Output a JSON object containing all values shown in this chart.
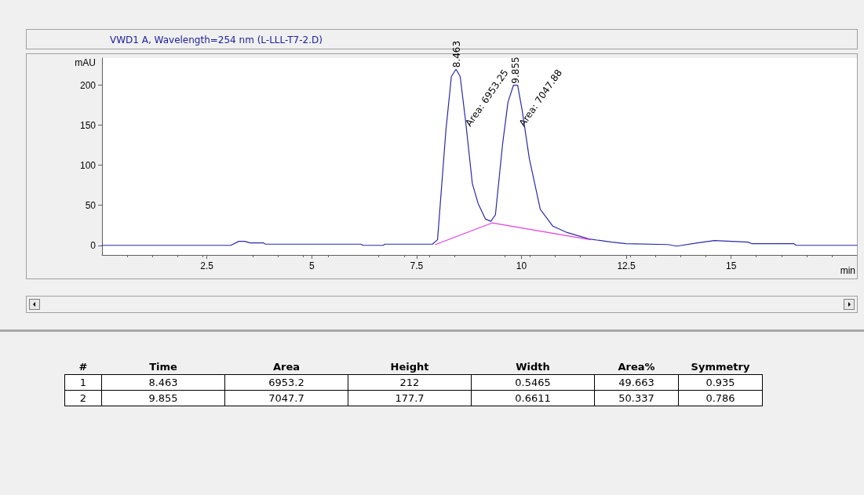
{
  "chart_data": [
    {
      "type": "line",
      "title": "VWD1 A, Wavelength=254 nm (L-LLL-T7-2.D)",
      "xlabel": "min",
      "ylabel": "mAU",
      "xlim": [
        0,
        18
      ],
      "xticks": [
        2.5,
        5,
        7.5,
        10,
        12.5,
        15
      ],
      "ylim": [
        -12,
        234
      ],
      "yticks": [
        0,
        50,
        100,
        150,
        200
      ],
      "grid": false,
      "series": [
        {
          "color": "#2a2aa8",
          "x": [
            0,
            3.07,
            3.26,
            3.4,
            3.53,
            3.85,
            3.9,
            6.17,
            6.23,
            6.7,
            6.75,
            7.88,
            8.0,
            8.2,
            8.33,
            8.44,
            8.54,
            8.67,
            8.83,
            8.97,
            9.14,
            9.27,
            9.38,
            9.55,
            9.68,
            9.81,
            9.91,
            10.02,
            10.19,
            10.45,
            10.75,
            11.09,
            11.61,
            12.15,
            12.5,
            13.5,
            13.7,
            14.2,
            14.6,
            15.4,
            15.5,
            16.5,
            16.55,
            18
          ],
          "values": [
            0,
            0,
            5,
            5,
            3,
            3,
            1.5,
            1.5,
            0,
            0,
            1.5,
            1.5,
            7,
            144,
            211,
            220,
            211,
            155,
            77,
            52,
            33,
            30,
            38,
            126,
            179,
            200,
            200,
            168,
            108,
            45,
            24,
            16,
            8,
            4,
            2,
            1,
            -1,
            3,
            6,
            4,
            2,
            2,
            0,
            0
          ]
        },
        {
          "color": "#e040e0",
          "x": [
            7.95,
            9.3,
            11.65
          ],
          "values": [
            1,
            28,
            7
          ]
        }
      ],
      "annotations": [
        {
          "text": "8.463",
          "x": 8.463,
          "y": 222
        },
        {
          "text": "Area: 6953.25",
          "x": 8.72,
          "y": 150
        },
        {
          "text": "9.855",
          "x": 9.855,
          "y": 202
        },
        {
          "text": "Area: 7047.88",
          "x": 10.0,
          "y": 150
        }
      ]
    },
    {
      "type": "other",
      "categories": [
        "#",
        "Time",
        "Area",
        "Height",
        "Width",
        "Area%",
        "Symmetry"
      ],
      "cell_labels": [
        [
          "1",
          "8.463",
          "6953.2",
          "212",
          "0.5465",
          "49.663",
          "0.935"
        ],
        [
          "2",
          "9.855",
          "7047.7",
          "177.7",
          "0.6611",
          "50.337",
          "0.786"
        ]
      ]
    }
  ]
}
